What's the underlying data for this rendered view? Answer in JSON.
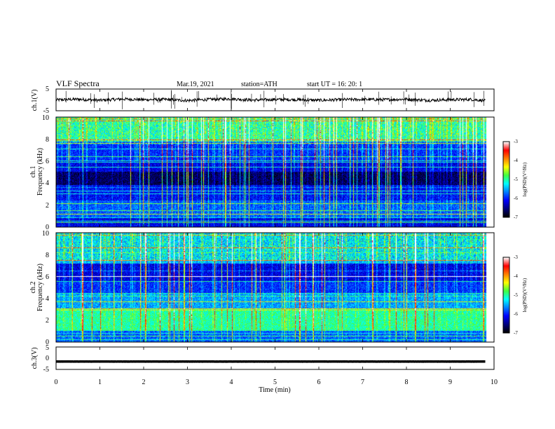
{
  "header": {
    "title": "VLF  Spectra",
    "date": "Mar.19, 2021",
    "station": "station=ATH",
    "start": "start  UT  =    16: 20: 1"
  },
  "colors": {
    "trace": "#000000",
    "colormap": [
      "#000000",
      "#000080",
      "#0000ff",
      "#0080ff",
      "#00ffff",
      "#40ff40",
      "#ffff00",
      "#ff8000",
      "#ff0000",
      "#ffffff"
    ]
  },
  "chart_data": [
    {
      "type": "line",
      "panel": "ch1-waveform",
      "ylabel": "ch.1(V)",
      "ylim": [
        -5,
        5
      ],
      "yticks": [
        "5",
        "-5"
      ],
      "x": [
        0,
        0.5,
        1,
        1.5,
        2,
        2.5,
        3,
        3.5,
        4,
        4.5,
        5,
        5.5,
        6,
        6.5,
        7,
        7.5,
        8,
        8.5,
        9,
        9.5,
        9.8
      ],
      "y": [
        0,
        0.3,
        -0.2,
        0.4,
        0.1,
        0.2,
        -0.3,
        0.2,
        0.5,
        -0.1,
        0.2,
        0.1,
        -0.2,
        0.1,
        0.2,
        0.1,
        0.3,
        -0.2,
        0.1,
        0.2,
        -0.4
      ]
    },
    {
      "type": "heatmap",
      "panel": "ch1-spectrogram",
      "ylabel": "ch.1\nFrequency  (kHz)",
      "ylim": [
        0,
        10
      ],
      "yticks": [
        "0",
        "2",
        "4",
        "6",
        "8",
        "10"
      ],
      "colorbar": {
        "label": "log(PSD)(V²/Hz)",
        "range": [
          -7,
          -3
        ],
        "ticks": [
          "-3",
          "-4",
          "-5",
          "-6",
          "-7"
        ]
      }
    },
    {
      "type": "heatmap",
      "panel": "ch2-spectrogram",
      "ylabel": "ch.2\nFrequency  (kHz)",
      "ylim": [
        0,
        10
      ],
      "yticks": [
        "0",
        "2",
        "4",
        "6",
        "8",
        "10"
      ],
      "colorbar": {
        "label": "log(PSD)(V²/Hz)",
        "range": [
          -7,
          -3
        ],
        "ticks": [
          "-3",
          "-4",
          "-5",
          "-6",
          "-7"
        ]
      }
    },
    {
      "type": "line",
      "panel": "ch3-waveform",
      "ylabel": "ch.3(V)",
      "ylim": [
        -5,
        5
      ],
      "yticks": [
        "5",
        "0",
        "-5"
      ],
      "x": [
        0,
        9.8
      ],
      "y": [
        -1.5,
        -1.5
      ]
    }
  ],
  "xaxis": {
    "label": "Time  (min)",
    "xlim": [
      0,
      10
    ],
    "ticks": [
      "0",
      "1",
      "2",
      "3",
      "4",
      "5",
      "6",
      "7",
      "8",
      "9",
      "10"
    ]
  }
}
